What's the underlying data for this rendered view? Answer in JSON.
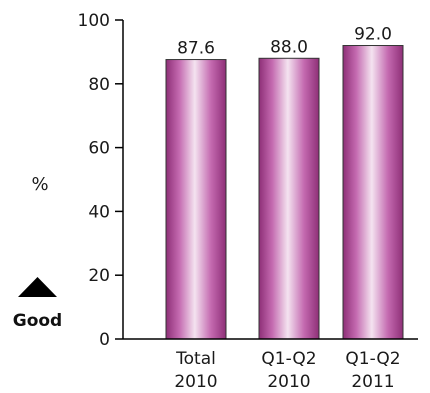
{
  "chart_data": {
    "type": "bar",
    "categories": [
      [
        "Total",
        "2010"
      ],
      [
        "Q1-Q2",
        "2010"
      ],
      [
        "Q1-Q2",
        "2011"
      ]
    ],
    "values": [
      87.6,
      88.0,
      92.0
    ],
    "value_labels": [
      "87.6",
      "88.0",
      "92.0"
    ],
    "ylabel": "%",
    "ylim": [
      0,
      100
    ],
    "yticks": [
      0,
      20,
      40,
      60,
      80,
      100
    ],
    "grid": false,
    "bar_color": "#b0408f",
    "annotation": {
      "text": "Good",
      "icon": "up-triangle-icon"
    }
  }
}
